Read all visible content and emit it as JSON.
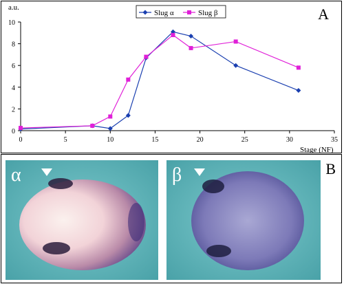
{
  "panel_labels": {
    "a": "A",
    "b": "B"
  },
  "chart_data": {
    "type": "line",
    "title": "",
    "xlabel": "Stage (NF)",
    "ylabel": "a.u.",
    "xlim": [
      0,
      35
    ],
    "ylim": [
      0,
      10
    ],
    "xticks": [
      0,
      5,
      10,
      15,
      20,
      25,
      30,
      35
    ],
    "yticks": [
      0,
      2,
      4,
      6,
      8,
      10
    ],
    "grid": false,
    "legend_position": "top-center",
    "series": [
      {
        "name": "Slug α",
        "color": "#1a3fb0",
        "marker": "diamond",
        "x": [
          0,
          8,
          10,
          12,
          14,
          17,
          19,
          24,
          31
        ],
        "y": [
          0.15,
          0.45,
          0.2,
          1.4,
          6.7,
          9.1,
          8.7,
          6.0,
          3.7
        ]
      },
      {
        "name": "Slug β",
        "color": "#e020d8",
        "marker": "square",
        "x": [
          0,
          8,
          10,
          12,
          14,
          17,
          19,
          24,
          31
        ],
        "y": [
          0.25,
          0.45,
          1.3,
          4.7,
          6.8,
          8.8,
          7.6,
          8.2,
          5.8
        ]
      }
    ]
  },
  "photos": {
    "alpha": {
      "greek_label": "α",
      "arrowhead_icon": "arrowhead-icon"
    },
    "beta": {
      "greek_label": "β",
      "arrowhead_icon": "arrowhead-icon"
    }
  },
  "colors": {
    "axis": "#000000",
    "background_teal": "#5fb4b8",
    "stain_purple": "#5a3a8a"
  }
}
